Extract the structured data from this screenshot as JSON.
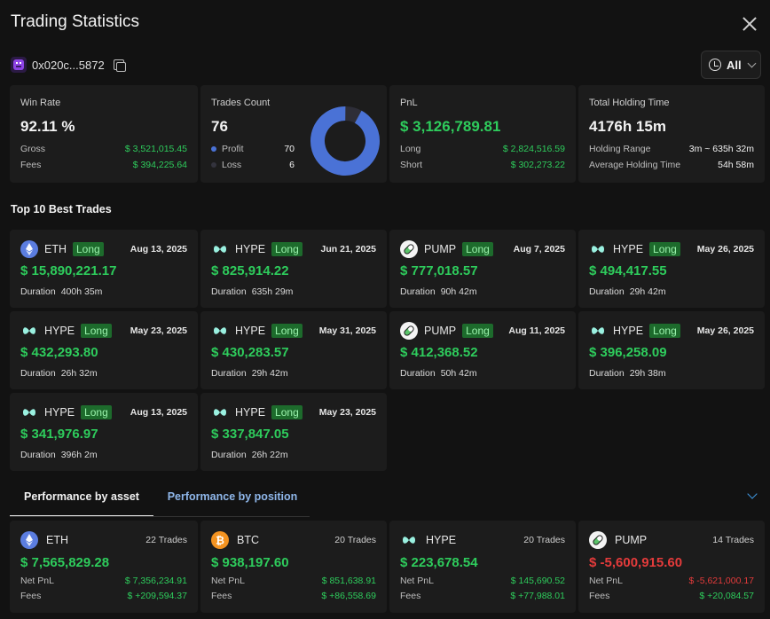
{
  "header": {
    "title": "Trading Statistics"
  },
  "account": {
    "address": "0x020c...5872"
  },
  "filter": {
    "label": "All"
  },
  "colors": {
    "green": "#2ecc5c",
    "red": "#e43b3b",
    "blue": "#4a72d6",
    "badge": "#1d6b2c"
  },
  "stats": {
    "win_rate": {
      "label": "Win Rate",
      "value": "92.11 %",
      "gross_label": "Gross",
      "gross": "$ 3,521,015.45",
      "fees_label": "Fees",
      "fees": "$ 394,225.64"
    },
    "trades": {
      "label": "Trades Count",
      "value": "76",
      "profit_label": "Profit",
      "profit": "70",
      "loss_label": "Loss",
      "loss": "6",
      "profit_ratio": 0.921
    },
    "pnl": {
      "label": "PnL",
      "value": "$ 3,126,789.81",
      "long_label": "Long",
      "long": "$ 2,824,516.59",
      "short_label": "Short",
      "short": "$ 302,273.22"
    },
    "holding": {
      "label": "Total Holding Time",
      "value": "4176h 15m",
      "range_label": "Holding Range",
      "range": "3m ~ 635h 32m",
      "avg_label": "Average Holding Time",
      "avg": "54h 58m"
    }
  },
  "top_trades": {
    "title": "Top 10 Best Trades",
    "duration_label": "Duration",
    "items": [
      {
        "coin": "ETH",
        "side": "Long",
        "date": "Aug 13, 2025",
        "amount": "$ 15,890,221.17",
        "duration": "400h 35m",
        "icon": "eth-icon"
      },
      {
        "coin": "HYPE",
        "side": "Long",
        "date": "Jun 21, 2025",
        "amount": "$ 825,914.22",
        "duration": "635h 29m",
        "icon": "hype-icon"
      },
      {
        "coin": "PUMP",
        "side": "Long",
        "date": "Aug 7, 2025",
        "amount": "$ 777,018.57",
        "duration": "90h 42m",
        "icon": "pump-icon"
      },
      {
        "coin": "HYPE",
        "side": "Long",
        "date": "May 26, 2025",
        "amount": "$ 494,417.55",
        "duration": "29h 42m",
        "icon": "hype-icon"
      },
      {
        "coin": "HYPE",
        "side": "Long",
        "date": "May 23, 2025",
        "amount": "$ 432,293.80",
        "duration": "26h 32m",
        "icon": "hype-icon"
      },
      {
        "coin": "HYPE",
        "side": "Long",
        "date": "May 31, 2025",
        "amount": "$ 430,283.57",
        "duration": "29h 42m",
        "icon": "hype-icon"
      },
      {
        "coin": "PUMP",
        "side": "Long",
        "date": "Aug 11, 2025",
        "amount": "$ 412,368.52",
        "duration": "50h 42m",
        "icon": "pump-icon"
      },
      {
        "coin": "HYPE",
        "side": "Long",
        "date": "May 26, 2025",
        "amount": "$ 396,258.09",
        "duration": "29h 38m",
        "icon": "hype-icon"
      },
      {
        "coin": "HYPE",
        "side": "Long",
        "date": "Aug 13, 2025",
        "amount": "$ 341,976.97",
        "duration": "396h 2m",
        "icon": "hype-icon"
      },
      {
        "coin": "HYPE",
        "side": "Long",
        "date": "May 23, 2025",
        "amount": "$ 337,847.05",
        "duration": "26h 22m",
        "icon": "hype-icon"
      }
    ]
  },
  "tabs": [
    {
      "label": "Performance by asset",
      "active": true
    },
    {
      "label": "Performance by position",
      "active": false
    }
  ],
  "assets": {
    "net_label": "Net PnL",
    "fees_label": "Fees",
    "items": [
      {
        "coin": "ETH",
        "trades": "22 Trades",
        "amount": "$ 7,565,829.28",
        "net": "$ 7,356,234.91",
        "fees": "$ +209,594.37",
        "negative": false,
        "icon": "eth-icon"
      },
      {
        "coin": "BTC",
        "trades": "20 Trades",
        "amount": "$ 938,197.60",
        "net": "$ 851,638.91",
        "fees": "$ +86,558.69",
        "negative": false,
        "icon": "btc-icon"
      },
      {
        "coin": "HYPE",
        "trades": "20 Trades",
        "amount": "$ 223,678.54",
        "net": "$ 145,690.52",
        "fees": "$ +77,988.01",
        "negative": false,
        "icon": "hype-icon"
      },
      {
        "coin": "PUMP",
        "trades": "14 Trades",
        "amount": "$ -5,600,915.60",
        "net": "$ -5,621,000.17",
        "fees": "$ +20,084.57",
        "negative": true,
        "icon": "pump-icon"
      }
    ]
  }
}
